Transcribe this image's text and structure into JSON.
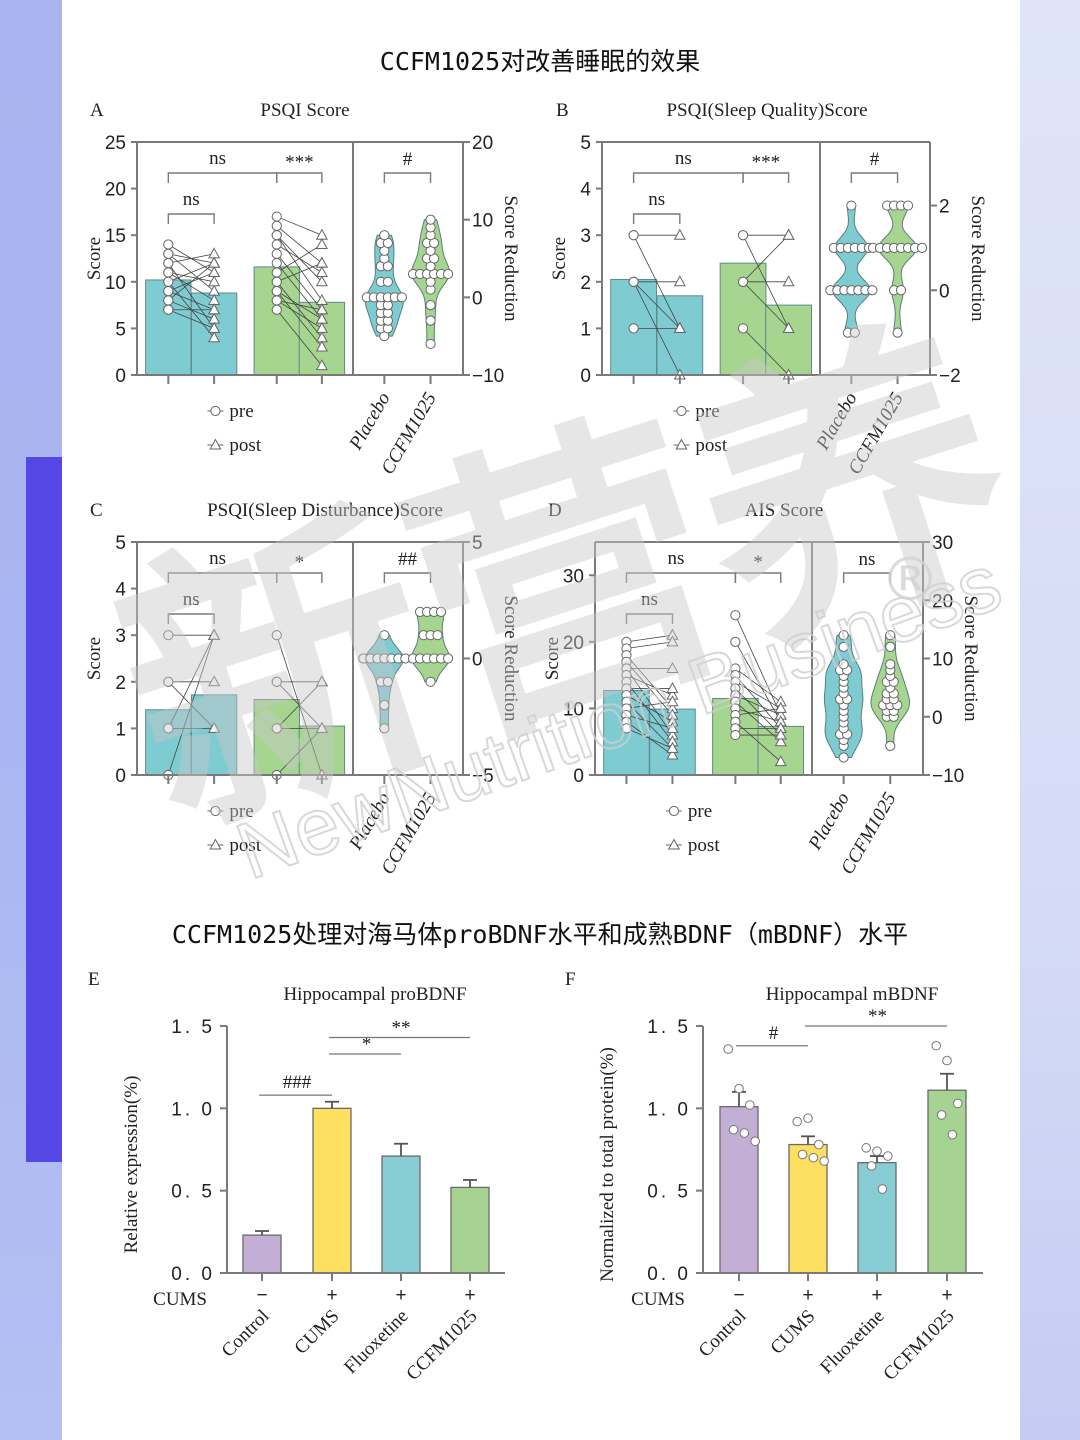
{
  "page": {
    "section1_title": "CCFM1025对改善睡眠的效果",
    "section2_title": "CCFM1025处理对海马体proBDNF水平和成熟BDNF（mBDNF）水平",
    "watermark_cjk": "新营养",
    "watermark_mark": "®",
    "watermark_en": "NewNutrition Business",
    "colors": {
      "placebo": "#7ecbd1",
      "ccfm1025": "#a6d58f",
      "control": "#c3afd6",
      "cums": "#fde060",
      "fluoxetine": "#88cdd3",
      "ccfm1025_bar": "#a6d391",
      "accent": "#5546e6",
      "axis": "#777777"
    }
  },
  "legend": {
    "pre": "pre",
    "post": "post"
  },
  "chart_data": [
    {
      "id": "A",
      "letter": "A",
      "type": "bar",
      "title": "PSQI Score",
      "ylabel": "Score",
      "y2label": "Score Reduction",
      "ylim": [
        0,
        25
      ],
      "yticks": [
        0,
        5,
        10,
        15,
        20,
        25
      ],
      "y2lim": [
        -10,
        20
      ],
      "y2ticks": [
        -10,
        0,
        10,
        20
      ],
      "violin_categories": [
        "Placebo",
        "CCFM1025"
      ],
      "bars": [
        {
          "group": "Placebo",
          "time": "pre",
          "value": 10.2
        },
        {
          "group": "Placebo",
          "time": "post",
          "value": 8.8
        },
        {
          "group": "CCFM1025",
          "time": "pre",
          "value": 11.6
        },
        {
          "group": "CCFM1025",
          "time": "post",
          "value": 7.8
        }
      ],
      "pairs": {
        "Placebo": [
          [
            14,
            11
          ],
          [
            13,
            12
          ],
          [
            13,
            9
          ],
          [
            12,
            13
          ],
          [
            12,
            5
          ],
          [
            11,
            10
          ],
          [
            11,
            8
          ],
          [
            10,
            12
          ],
          [
            10,
            4
          ],
          [
            9,
            11
          ],
          [
            9,
            7
          ],
          [
            8,
            12
          ],
          [
            8,
            6
          ],
          [
            7,
            5
          ],
          [
            7,
            7
          ]
        ],
        "CCFM1025": [
          [
            17,
            15
          ],
          [
            16,
            12
          ],
          [
            15,
            10
          ],
          [
            15,
            8
          ],
          [
            14,
            11
          ],
          [
            13,
            7
          ],
          [
            12,
            6
          ],
          [
            11,
            14
          ],
          [
            10,
            4
          ],
          [
            10,
            12
          ],
          [
            9,
            3
          ],
          [
            9,
            6
          ],
          [
            8,
            7
          ],
          [
            8,
            5
          ],
          [
            7,
            1
          ]
        ]
      },
      "violins": {
        "Placebo": [
          -5,
          -4,
          -4,
          -3,
          -3,
          -2,
          -2,
          -1,
          -1,
          0,
          0,
          0,
          0,
          0,
          0,
          2,
          2,
          4,
          4,
          5,
          6,
          7,
          7,
          8
        ],
        "CCFM1025": [
          -6,
          -3,
          -1,
          1,
          2,
          3,
          3,
          3,
          3,
          3,
          3,
          4,
          5,
          5,
          6,
          7,
          7,
          8,
          9,
          10
        ]
      },
      "brackets": [
        {
          "from": 0,
          "to": 1,
          "label": "ns",
          "level": 1
        },
        {
          "from": 0,
          "to": 2,
          "label": "ns",
          "level": 2
        },
        {
          "from": 2,
          "to": 3,
          "label": "***",
          "level": 2
        }
      ],
      "violin_bracket": "#"
    },
    {
      "id": "B",
      "letter": "B",
      "type": "bar",
      "title": "PSQI(Sleep Quality)Score",
      "ylabel": "Score",
      "y2label": "Score Reduction",
      "ylim": [
        0,
        5
      ],
      "yticks": [
        0,
        1,
        2,
        3,
        4,
        5
      ],
      "y2lim": [
        -2,
        3.5
      ],
      "y2ticks": [
        -2,
        0,
        2
      ],
      "violin_categories": [
        "Placebo",
        "CCFM1025"
      ],
      "bars": [
        {
          "group": "Placebo",
          "time": "pre",
          "value": 2.05
        },
        {
          "group": "Placebo",
          "time": "post",
          "value": 1.7
        },
        {
          "group": "CCFM1025",
          "time": "pre",
          "value": 2.4
        },
        {
          "group": "CCFM1025",
          "time": "post",
          "value": 1.5
        }
      ],
      "pairs": {
        "Placebo": [
          [
            3,
            3
          ],
          [
            3,
            1
          ],
          [
            2,
            2
          ],
          [
            2,
            1
          ],
          [
            2,
            0
          ],
          [
            1,
            1
          ]
        ],
        "CCFM1025": [
          [
            3,
            3
          ],
          [
            3,
            1
          ],
          [
            2,
            3
          ],
          [
            2,
            2
          ],
          [
            2,
            1
          ],
          [
            1,
            0
          ]
        ]
      },
      "violins": {
        "Placebo": [
          -1,
          -1,
          0,
          0,
          0,
          0,
          0,
          0,
          0,
          1,
          1,
          1,
          1,
          1,
          1,
          2
        ],
        "CCFM1025": [
          -1,
          0,
          0,
          1,
          1,
          1,
          1,
          1,
          1,
          1,
          1,
          2,
          2,
          2,
          2
        ]
      },
      "brackets": [
        {
          "from": 0,
          "to": 1,
          "label": "ns",
          "level": 1
        },
        {
          "from": 0,
          "to": 2,
          "label": "ns",
          "level": 2
        },
        {
          "from": 2,
          "to": 3,
          "label": "***",
          "level": 2
        }
      ],
      "violin_bracket": "#"
    },
    {
      "id": "C",
      "letter": "C",
      "type": "bar",
      "title": "PSQI(Sleep Disturbance)Score",
      "ylabel": "Score",
      "y2label": "Score Reduction",
      "ylim": [
        0,
        5
      ],
      "yticks": [
        0,
        1,
        2,
        3,
        4,
        5
      ],
      "y2lim": [
        -5,
        5
      ],
      "y2ticks": [
        -5,
        0,
        5
      ],
      "violin_categories": [
        "Placebo",
        "CCFM1025"
      ],
      "bars": [
        {
          "group": "Placebo",
          "time": "pre",
          "value": 1.4
        },
        {
          "group": "Placebo",
          "time": "post",
          "value": 1.72
        },
        {
          "group": "CCFM1025",
          "time": "pre",
          "value": 1.62
        },
        {
          "group": "CCFM1025",
          "time": "post",
          "value": 1.05
        }
      ],
      "pairs": {
        "Placebo": [
          [
            3,
            3
          ],
          [
            2,
            2
          ],
          [
            2,
            1
          ],
          [
            1,
            3
          ],
          [
            1,
            1
          ],
          [
            0,
            3
          ]
        ],
        "CCFM1025": [
          [
            3,
            0
          ],
          [
            2,
            2
          ],
          [
            2,
            1
          ],
          [
            1,
            2
          ],
          [
            1,
            1
          ],
          [
            0,
            1
          ]
        ]
      },
      "violins": {
        "Placebo": [
          -3,
          -2,
          -1,
          -1,
          0,
          0,
          0,
          0,
          0,
          0,
          0,
          1
        ],
        "CCFM1025": [
          -1,
          0,
          0,
          0,
          0,
          0,
          0,
          1,
          1,
          1,
          2,
          2,
          2,
          2
        ]
      },
      "brackets": [
        {
          "from": 0,
          "to": 1,
          "label": "ns",
          "level": 1
        },
        {
          "from": 0,
          "to": 2,
          "label": "ns",
          "level": 2
        },
        {
          "from": 2,
          "to": 3,
          "label": "*",
          "level": 2
        }
      ],
      "violin_bracket": "##"
    },
    {
      "id": "D",
      "letter": "D",
      "type": "bar",
      "title": "AIS Score",
      "ylabel": "Score",
      "y2label": "Score Reduction",
      "ylim": [
        0,
        35
      ],
      "yticks": [
        0,
        10,
        20,
        30
      ],
      "y2lim": [
        -10,
        30
      ],
      "y2ticks": [
        -10,
        0,
        10,
        20,
        30
      ],
      "violin_categories": [
        "Placebo",
        "CCFM1025"
      ],
      "bars": [
        {
          "group": "Placebo",
          "time": "pre",
          "value": 12.7
        },
        {
          "group": "Placebo",
          "time": "post",
          "value": 9.9
        },
        {
          "group": "CCFM1025",
          "time": "pre",
          "value": 11.5
        },
        {
          "group": "CCFM1025",
          "time": "post",
          "value": 7.3
        }
      ],
      "pairs": {
        "Placebo": [
          [
            20,
            21
          ],
          [
            19,
            20
          ],
          [
            18,
            10
          ],
          [
            17,
            9
          ],
          [
            16,
            16
          ],
          [
            16,
            6
          ],
          [
            15,
            12
          ],
          [
            14,
            5
          ],
          [
            13,
            13
          ],
          [
            12,
            8
          ],
          [
            11,
            4
          ],
          [
            10,
            11
          ],
          [
            9,
            7
          ],
          [
            8,
            3
          ],
          [
            7,
            4
          ]
        ],
        "CCFM1025": [
          [
            24,
            9
          ],
          [
            20,
            8
          ],
          [
            16,
            11
          ],
          [
            15,
            7
          ],
          [
            14,
            10
          ],
          [
            13,
            6
          ],
          [
            12,
            9
          ],
          [
            11,
            5
          ],
          [
            10,
            8
          ],
          [
            9,
            10
          ],
          [
            8,
            2
          ],
          [
            7,
            7
          ],
          [
            6,
            6
          ]
        ]
      },
      "violins": {
        "Placebo": [
          -7,
          -5,
          -4,
          -3,
          -3,
          -2,
          -1,
          0,
          1,
          2,
          3,
          3,
          4,
          5,
          6,
          7,
          8,
          8,
          9,
          12,
          14
        ],
        "CCFM1025": [
          -5,
          0,
          0,
          1,
          1,
          2,
          2,
          2,
          3,
          3,
          4,
          4,
          5,
          6,
          6,
          7,
          8,
          9,
          12,
          14
        ]
      },
      "brackets": [
        {
          "from": 0,
          "to": 1,
          "label": "ns",
          "level": 1
        },
        {
          "from": 0,
          "to": 2,
          "label": "ns",
          "level": 2
        },
        {
          "from": 2,
          "to": 3,
          "label": "*",
          "level": 2
        }
      ],
      "violin_bracket": "ns"
    },
    {
      "id": "E",
      "letter": "E",
      "type": "bar",
      "title": "Hippocampal proBDNF",
      "ylabel": "Relative expression(%)",
      "xlabel": "",
      "ylim": [
        0,
        1.5
      ],
      "yticks": [
        "0.0",
        "0.5",
        "1.0",
        "1.5"
      ],
      "row_label": "CUMS",
      "categories": [
        "Control",
        "CUMS",
        "Fluoxetine",
        "CCFM1025"
      ],
      "cums": [
        "−",
        "+",
        "+",
        "+"
      ],
      "values": [
        0.23,
        1.0,
        0.71,
        0.52
      ],
      "errors": [
        0.025,
        0.04,
        0.075,
        0.045
      ],
      "points": [],
      "annotations": [
        {
          "from": 0,
          "to": 1,
          "label": "###",
          "y": 1.08
        },
        {
          "from": 1,
          "to": 2,
          "label": "*",
          "y": 1.33
        },
        {
          "from": 1,
          "to": 3,
          "label": "**",
          "y": 1.43
        }
      ]
    },
    {
      "id": "F",
      "letter": "F",
      "type": "bar",
      "title": "Hippocampal mBDNF",
      "ylabel": "Normalized to total protein(%)",
      "xlabel": "",
      "ylim": [
        0,
        1.5
      ],
      "yticks": [
        "0.0",
        "0.5",
        "1.0",
        "1.5"
      ],
      "row_label": "CUMS",
      "categories": [
        "Control",
        "CUMS",
        "Fluoxetine",
        "CCFM1025"
      ],
      "cums": [
        "−",
        "+",
        "+",
        "+"
      ],
      "values": [
        1.01,
        0.78,
        0.67,
        1.11
      ],
      "errors": [
        0.09,
        0.05,
        0.04,
        0.1
      ],
      "points": [
        [
          1.36,
          1.12,
          1.02,
          0.87,
          0.85,
          0.8
        ],
        [
          0.92,
          0.94,
          0.78,
          0.72,
          0.7,
          0.68
        ],
        [
          0.76,
          0.74,
          0.71,
          0.65,
          0.51
        ],
        [
          1.38,
          1.29,
          1.03,
          0.96,
          0.84
        ]
      ],
      "annotations": [
        {
          "from": 0,
          "to": 1,
          "label": "#",
          "y": 1.38
        },
        {
          "from": 1,
          "to": 3,
          "label": "**",
          "y": 1.5
        }
      ]
    }
  ]
}
